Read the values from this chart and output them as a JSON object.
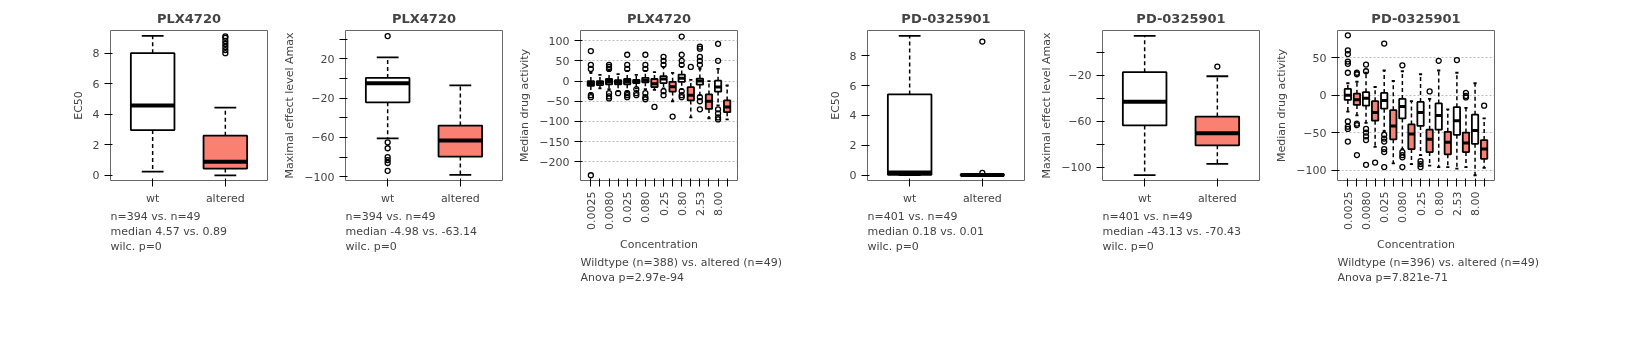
{
  "chart_data": [
    {
      "type": "box",
      "title": "PLX4720",
      "ylabel": "EC50",
      "categories": [
        "wt",
        "altered"
      ],
      "colors": [
        "#ffffff",
        "#fa8072"
      ],
      "ylim": [
        -0.33,
        9.48
      ],
      "yticks": [
        0,
        2,
        4,
        6,
        8
      ],
      "grid": false,
      "boxes": [
        {
          "low": 0.25,
          "q1": 2.97,
          "median": 4.57,
          "q3": 8.0,
          "high": 9.13
        },
        {
          "low": 0,
          "q1": 0.45,
          "median": 0.89,
          "q3": 2.6,
          "high": 4.43,
          "outliers": [
            8.0,
            8.2,
            8.4,
            8.6,
            8.8,
            9.0,
            9.1
          ]
        }
      ],
      "annotations": [
        "n=394 vs. n=49",
        "median 4.57 vs. 0.89",
        "wilc. p=0"
      ]
    },
    {
      "type": "box",
      "title": "PLX4720",
      "ylabel": "Maximal effect level Amax",
      "categories": [
        "wt",
        "altered"
      ],
      "colors": [
        "#ffffff",
        "#fa8072"
      ],
      "ylim": [
        -103.8,
        48.7
      ],
      "yticks": [
        {
          "value": 40,
          "label": null
        },
        20,
        {
          "value": 0,
          "label": null
        },
        -20,
        {
          "value": -40,
          "label": null
        },
        -60,
        {
          "value": -80,
          "label": null
        },
        -100
      ],
      "grid": false,
      "boxes": [
        {
          "low": -61,
          "q1": -24.3,
          "median": -4.98,
          "q3": 0.5,
          "high": 21.3,
          "outliers": [
            43,
            -65,
            -71,
            -80,
            -83,
            -86,
            -94
          ]
        },
        {
          "low": -98,
          "q1": -79.5,
          "median": -63.14,
          "q3": -48,
          "high": -7.1
        }
      ],
      "annotations": [
        "n=394 vs. n=49",
        "median -4.98 vs. -63.14",
        "wilc. p=0"
      ]
    },
    {
      "type": "box",
      "title": "PLX4720",
      "ylabel": "Median drug activity",
      "xlabel": "Concentration",
      "categories": [
        "0.0025",
        null,
        "0.0080",
        null,
        "0.025",
        null,
        "0.080",
        null,
        "0.25",
        null,
        "0.80",
        null,
        "2.53",
        null,
        "8.00",
        null
      ],
      "colors": [
        "#ffffff",
        "#fa8072",
        "#ffffff",
        "#fa8072",
        "#ffffff",
        "#fa8072",
        "#ffffff",
        "#fa8072",
        "#ffffff",
        "#fa8072",
        "#ffffff",
        "#fa8072",
        "#ffffff",
        "#fa8072",
        "#ffffff",
        "#fa8072"
      ],
      "ylim": [
        -246,
        125
      ],
      "yticks": [
        100,
        50,
        0,
        -50,
        -100,
        -150,
        -200
      ],
      "grid": "y",
      "boxes": [
        {
          "low": -30,
          "q1": -12,
          "median": -6,
          "q3": 0,
          "high": 20,
          "outliers": [
            30,
            40,
            74,
            -35,
            -40,
            -233
          ]
        },
        {
          "low": -18,
          "q1": -10,
          "median": -5,
          "q3": 0,
          "high": 15
        },
        {
          "low": -20,
          "q1": -8,
          "median": -1,
          "q3": 5,
          "high": 25,
          "outliers": [
            30,
            35,
            40,
            -30,
            -38,
            -43
          ]
        },
        {
          "low": -25,
          "q1": -8,
          "median": -3,
          "q3": 2,
          "high": 17,
          "outliers": [
            -30
          ]
        },
        {
          "low": -25,
          "q1": -8,
          "median": -1,
          "q3": 5,
          "high": 25,
          "outliers": [
            30,
            40,
            65,
            -30,
            -35,
            -40
          ]
        },
        {
          "low": -18,
          "q1": -5,
          "median": -1,
          "q3": 3,
          "high": 15,
          "outliers": [
            -20,
            -30,
            -35
          ]
        },
        {
          "low": -20,
          "q1": -3,
          "median": 2,
          "q3": 8,
          "high": 25,
          "outliers": [
            30,
            40,
            65,
            -30,
            -40,
            -45
          ]
        },
        {
          "low": -22,
          "q1": -15,
          "median": -7,
          "q3": 5,
          "high": 22,
          "outliers": [
            -64
          ]
        },
        {
          "low": -18,
          "q1": -5,
          "median": 5,
          "q3": 12,
          "high": 35,
          "outliers": [
            40,
            50,
            60,
            -25,
            -35
          ]
        },
        {
          "low": -50,
          "q1": -26,
          "median": -14,
          "q3": -2,
          "high": 20,
          "outliers": [
            -88
          ]
        },
        {
          "low": -20,
          "q1": -2,
          "median": 7,
          "q3": 16,
          "high": 35,
          "outliers": [
            40,
            50,
            65,
            110,
            -25,
            -35,
            -40
          ]
        },
        {
          "low": -90,
          "q1": -48,
          "median": -35,
          "q3": -15,
          "high": 3,
          "outliers": [
            35
          ]
        },
        {
          "low": -35,
          "q1": -9,
          "median": 0,
          "q3": 6,
          "high": 30,
          "outliers": [
            40,
            50,
            60,
            80,
            85,
            -40,
            -50,
            -70
          ]
        },
        {
          "low": -92,
          "q1": -69,
          "median": -50,
          "q3": -33,
          "high": 0
        },
        {
          "low": -60,
          "q1": -26,
          "median": -15,
          "q3": 1,
          "high": 30,
          "outliers": [
            50,
            92,
            -70,
            -80,
            -90,
            -95
          ]
        },
        {
          "low": -95,
          "q1": -77,
          "median": -64,
          "q3": -48,
          "high": -11
        }
      ],
      "annotations": [
        "Wildtype (n=388) vs. altered (n=49)",
        "Anova p=2.97e-94"
      ]
    },
    {
      "type": "box",
      "title": "PD-0325901",
      "ylabel": "EC50",
      "categories": [
        "wt",
        "altered"
      ],
      "colors": [
        "#ffffff",
        "#fa8072"
      ],
      "ylim": [
        -0.36,
        9.7
      ],
      "yticks": [
        0,
        2,
        4,
        6,
        8
      ],
      "grid": false,
      "boxes": [
        {
          "low": 0,
          "q1": 0.02,
          "median": 0.18,
          "q3": 5.41,
          "high": 9.34
        },
        {
          "low": 0,
          "q1": 0,
          "median": 0.01,
          "q3": 0.03,
          "high": 0.06,
          "outliers": [
            0.15,
            8.96
          ]
        }
      ],
      "annotations": [
        "n=401 vs. n=49",
        "median 0.18 vs. 0.01",
        "wilc. p=0"
      ]
    },
    {
      "type": "box",
      "title": "PD-0325901",
      "ylabel": "Maximal effect level Amax",
      "categories": [
        "wt",
        "altered"
      ],
      "colors": [
        "#ffffff",
        "#fa8072"
      ],
      "ylim": [
        -111.5,
        18.7
      ],
      "yticks": [
        {
          "value": 0,
          "label": null
        },
        -20,
        {
          "value": -40,
          "label": null
        },
        -60,
        {
          "value": -80,
          "label": null
        },
        -100
      ],
      "grid": false,
      "boxes": [
        {
          "low": -106.8,
          "q1": -63.7,
          "median": -43.13,
          "q3": -17.5,
          "high": 14
        },
        {
          "low": -97,
          "q1": -81,
          "median": -70.43,
          "q3": -56,
          "high": -21,
          "outliers": [
            -12.6
          ]
        }
      ],
      "annotations": [
        "n=401 vs. n=49",
        "median -43.13 vs. -70.43",
        "wilc. p=0"
      ]
    },
    {
      "type": "box",
      "title": "PD-0325901",
      "ylabel": "Median drug activity",
      "xlabel": "Concentration",
      "categories": [
        "0.0025",
        null,
        "0.0080",
        null,
        "0.025",
        null,
        "0.080",
        null,
        "0.25",
        null,
        "0.80",
        null,
        "2.53",
        null,
        "8.00",
        null
      ],
      "colors": [
        "#ffffff",
        "#fa8072",
        "#ffffff",
        "#fa8072",
        "#ffffff",
        "#fa8072",
        "#ffffff",
        "#fa8072",
        "#ffffff",
        "#fa8072",
        "#ffffff",
        "#fa8072",
        "#ffffff",
        "#fa8072",
        "#ffffff",
        "#fa8072"
      ],
      "ylim": [
        -114,
        86.5
      ],
      "yticks": [
        50,
        0,
        -50,
        -100
      ],
      "grid": "y",
      "boxes": [
        {
          "low": -22,
          "q1": -6.3,
          "median": 0,
          "q3": 8.4,
          "high": 16,
          "outliers": [
            30,
            42,
            45,
            55,
            60,
            80,
            -35,
            -42,
            -45,
            -62
          ]
        },
        {
          "low": -27,
          "q1": -13,
          "median": -6,
          "q3": 2,
          "high": 18,
          "outliers": [
            28,
            30,
            -38,
            -40,
            -80
          ]
        },
        {
          "low": -37,
          "q1": -14,
          "median": -4,
          "q3": 4,
          "high": 30,
          "outliers": [
            32,
            41,
            -45,
            -50,
            -55,
            -60,
            -93
          ]
        },
        {
          "low": -69,
          "q1": -34,
          "median": -23,
          "q3": -8,
          "high": 11,
          "outliers": [
            -90
          ]
        },
        {
          "low": -48,
          "q1": -18,
          "median": -7,
          "q3": 3,
          "high": 33,
          "outliers": [
            69,
            -53,
            -58,
            -62,
            -72,
            -76,
            -96
          ]
        },
        {
          "low": -91,
          "q1": -59,
          "median": -41,
          "q3": -20,
          "high": 19
        },
        {
          "low": -72,
          "q1": -31,
          "median": -15,
          "q3": -5,
          "high": 32,
          "outliers": [
            40,
            -76,
            -80,
            -83,
            -96
          ]
        },
        {
          "low": -92,
          "q1": -72,
          "median": -52,
          "q3": -39,
          "high": -8
        },
        {
          "low": -80,
          "q1": -41,
          "median": -23,
          "q3": -9,
          "high": 28,
          "outliers": [
            -88,
            -92,
            -96
          ]
        },
        {
          "low": -94,
          "q1": -76,
          "median": -59,
          "q3": -46,
          "high": -5,
          "outliers": [
            5
          ]
        },
        {
          "low": -96,
          "q1": -46,
          "median": -27,
          "q3": -11,
          "high": 33,
          "outliers": [
            46
          ]
        },
        {
          "low": -96,
          "q1": -79,
          "median": -63,
          "q3": -49,
          "high": -19
        },
        {
          "low": -98,
          "q1": -53,
          "median": -34,
          "q3": -16,
          "high": 30,
          "outliers": [
            47
          ]
        },
        {
          "low": -96,
          "q1": -76,
          "median": -64,
          "q3": -50,
          "high": -17,
          "outliers": [
            3,
            -1,
            -3
          ]
        },
        {
          "low": -107,
          "q1": -65,
          "median": -47,
          "q3": -26,
          "high": 16
        },
        {
          "low": -97,
          "q1": -85,
          "median": -72,
          "q3": -60,
          "high": -31,
          "outliers": [
            -14
          ]
        }
      ],
      "annotations": [
        "Wildtype (n=396) vs. altered (n=49)",
        "Anova p=7.821e-71"
      ]
    }
  ]
}
